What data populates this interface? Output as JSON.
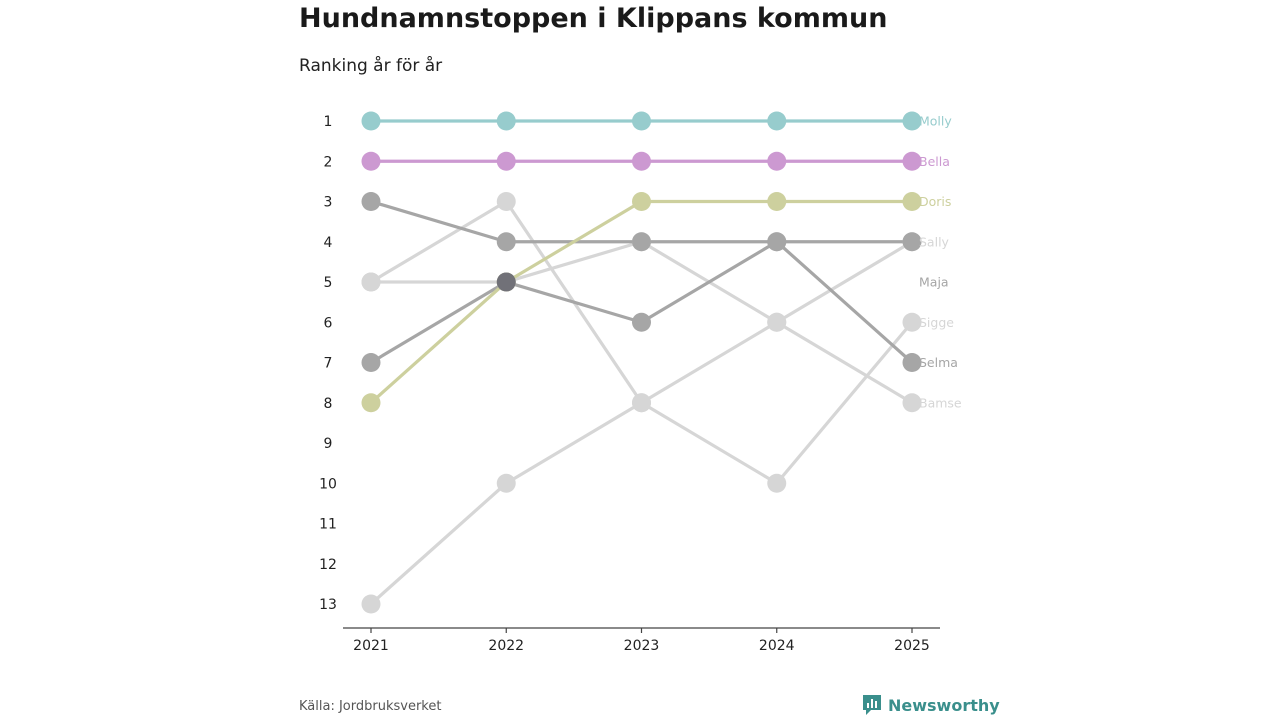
{
  "title": "Hundnamnstoppen i Klippans kommun",
  "subtitle": "Ranking år för år",
  "source": "Källa: Jordbruksverket",
  "brand": "Newsworthy",
  "colors": {
    "teal": "#97cccd",
    "purple": "#cc99d1",
    "olive": "#cdd09e",
    "gray": "#a6a6a6",
    "light_gray": "#d6d6d6",
    "overlap": "#717178",
    "brand": "#3a8f8c",
    "axis": "#444444"
  },
  "chart_data": {
    "type": "line",
    "subtype": "bump",
    "title": "Hundnamnstoppen i Klippans kommun",
    "subtitle": "Ranking år för år",
    "xlabel": "",
    "ylabel": "",
    "x": [
      "2021",
      "2022",
      "2023",
      "2024",
      "2025"
    ],
    "y_ticks": [
      "1",
      "2",
      "3",
      "4",
      "5",
      "6",
      "7",
      "8",
      "9",
      "10",
      "11",
      "12",
      "13"
    ],
    "ylim": [
      1,
      13
    ],
    "y_inverted": true,
    "series": [
      {
        "name": "Bamse",
        "color": "#d6d6d6",
        "values": [
          13,
          10,
          8,
          6,
          8
        ]
      },
      {
        "name": "Sally",
        "color": "#d6d6d6",
        "values": [
          5,
          5,
          4,
          6,
          4
        ]
      },
      {
        "name": "Sigge",
        "color": "#d6d6d6",
        "values": [
          5,
          3,
          8,
          10,
          6
        ]
      },
      {
        "name": "Maja",
        "color": "#a6a6a6",
        "values": [
          7,
          5,
          6,
          4,
          4
        ]
      },
      {
        "name": "Selma",
        "color": "#a6a6a6",
        "values": [
          3,
          4,
          4,
          4,
          7
        ]
      },
      {
        "name": "Doris",
        "color": "#cdd09e",
        "values": [
          8,
          5,
          3,
          3,
          3
        ]
      },
      {
        "name": "Bella",
        "color": "#cc99d1",
        "values": [
          2,
          2,
          2,
          2,
          2
        ]
      },
      {
        "name": "Molly",
        "color": "#97cccd",
        "values": [
          1,
          1,
          1,
          1,
          1
        ]
      }
    ],
    "end_labels": [
      {
        "name": "Molly",
        "color": "#97cccd",
        "rank": 1
      },
      {
        "name": "Bella",
        "color": "#cc99d1",
        "rank": 2
      },
      {
        "name": "Doris",
        "color": "#cdd09e",
        "rank": 3
      },
      {
        "name": "Sally",
        "color": "#d6d6d6",
        "rank": 4
      },
      {
        "name": "Maja",
        "color": "#a6a6a6",
        "rank": 5
      },
      {
        "name": "Sigge",
        "color": "#d6d6d6",
        "rank": 6
      },
      {
        "name": "Selma",
        "color": "#a6a6a6",
        "rank": 7
      },
      {
        "name": "Bamse",
        "color": "#d6d6d6",
        "rank": 8
      }
    ]
  }
}
